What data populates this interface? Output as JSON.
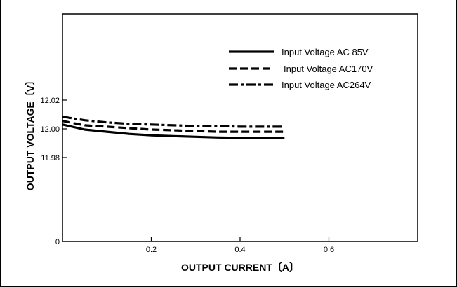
{
  "chart_data": {
    "type": "line",
    "title": "",
    "xlabel": "OUTPUT CURRENT〔A〕",
    "ylabel": "OUTPUT VOLTAGE〔V〕",
    "xlim": [
      0,
      0.8
    ],
    "x_ticks": [
      {
        "value": 0.2,
        "label": "0.2"
      },
      {
        "value": 0.4,
        "label": "0.4"
      },
      {
        "value": 0.6,
        "label": "0.6"
      }
    ],
    "y_ticks": [
      {
        "value": 0,
        "label": "0"
      },
      {
        "value": 11.98,
        "label": "11.98"
      },
      {
        "value": 12.0,
        "label": "12.00"
      },
      {
        "value": 12.02,
        "label": "12.02"
      }
    ],
    "grid": false,
    "legend": "top-right",
    "series": [
      {
        "name": "Input Voltage  AC 85V",
        "style": "solid",
        "x": [
          0,
          0.05,
          0.1,
          0.15,
          0.2,
          0.25,
          0.3,
          0.35,
          0.4,
          0.45,
          0.5
        ],
        "y": [
          12.003,
          11.9995,
          11.998,
          11.9965,
          11.9955,
          11.995,
          11.9945,
          11.994,
          11.9937,
          11.9935,
          11.9935
        ]
      },
      {
        "name": "Input Voltage AC170V",
        "style": "dashed",
        "x": [
          0,
          0.05,
          0.1,
          0.15,
          0.2,
          0.25,
          0.3,
          0.35,
          0.4,
          0.45,
          0.5
        ],
        "y": [
          12.0055,
          12.0025,
          12.0015,
          12.0005,
          11.9995,
          11.999,
          11.9985,
          11.998,
          11.998,
          11.998,
          11.998
        ]
      },
      {
        "name": "Input Voltage AC264V",
        "style": "dashdot",
        "x": [
          0,
          0.05,
          0.1,
          0.15,
          0.2,
          0.25,
          0.3,
          0.35,
          0.4,
          0.45,
          0.5
        ],
        "y": [
          12.0085,
          12.006,
          12.0045,
          12.0035,
          12.003,
          12.0025,
          12.002,
          12.002,
          12.0015,
          12.0015,
          12.0015
        ]
      }
    ]
  }
}
